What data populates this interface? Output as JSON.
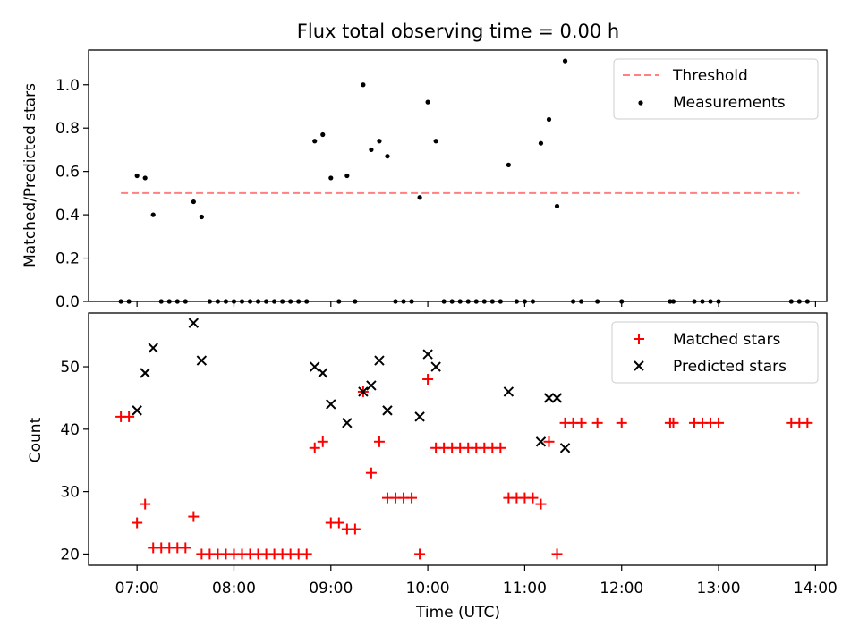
{
  "chart_data": [
    {
      "type": "scatter",
      "title": "Flux total observing time = 0.00 h",
      "xlabel": "",
      "ylabel": "Matched/Predicted stars",
      "xlim": [
        "06:30",
        "14:07"
      ],
      "ylim": [
        0,
        1.16
      ],
      "yticks": [
        "0.0",
        "0.2",
        "0.4",
        "0.6",
        "0.8",
        "1.0"
      ],
      "legend": {
        "position": "top-right",
        "entries": [
          "Threshold",
          "Measurements"
        ]
      },
      "series": [
        {
          "name": "Threshold",
          "kind": "dashed-line",
          "color": "#ff8080",
          "x": [
            "06:50",
            "13:50"
          ],
          "y": [
            0.5,
            0.5
          ]
        },
        {
          "name": "Measurements",
          "kind": "points",
          "color": "#000000",
          "x": [
            "06:50",
            "06:55",
            "07:00",
            "07:05",
            "07:10",
            "07:15",
            "07:20",
            "07:25",
            "07:30",
            "07:35",
            "07:40",
            "07:45",
            "07:50",
            "07:55",
            "08:00",
            "08:05",
            "08:10",
            "08:15",
            "08:20",
            "08:25",
            "08:30",
            "08:35",
            "08:40",
            "08:45",
            "08:50",
            "08:55",
            "09:00",
            "09:05",
            "09:10",
            "09:15",
            "09:20",
            "09:25",
            "09:30",
            "09:35",
            "09:40",
            "09:45",
            "09:50",
            "09:55",
            "10:00",
            "10:05",
            "10:10",
            "10:15",
            "10:20",
            "10:25",
            "10:30",
            "10:35",
            "10:40",
            "10:45",
            "10:50",
            "10:55",
            "11:00",
            "11:05",
            "11:10",
            "11:15",
            "11:20",
            "11:25",
            "11:30",
            "11:35",
            "11:45",
            "12:00",
            "12:30",
            "12:32",
            "12:45",
            "12:50",
            "12:55",
            "13:00",
            "13:45",
            "13:50",
            "13:55"
          ],
          "y": [
            0,
            0,
            0.58,
            0.57,
            0.4,
            0,
            0,
            0,
            0,
            0.46,
            0.39,
            0,
            0,
            0,
            0,
            0,
            0,
            0,
            0,
            0,
            0,
            0,
            0,
            0,
            0.74,
            0.77,
            0.57,
            0,
            0.58,
            0,
            1.0,
            0.7,
            0.74,
            0.67,
            0,
            0,
            0,
            0.48,
            0.92,
            0.74,
            0,
            0,
            0,
            0,
            0,
            0,
            0,
            0,
            0.63,
            0,
            0,
            0,
            0.73,
            0.84,
            0.44,
            1.11,
            0,
            0,
            0,
            0,
            0,
            0,
            0,
            0,
            0,
            0,
            0,
            0,
            0
          ]
        }
      ]
    },
    {
      "type": "scatter",
      "title": "",
      "xlabel": "Time (UTC)",
      "ylabel": "Count",
      "xlim": [
        "06:30",
        "14:07"
      ],
      "ylim": [
        18.2,
        58.6
      ],
      "xticks": [
        "07:00",
        "08:00",
        "09:00",
        "10:00",
        "11:00",
        "12:00",
        "13:00",
        "14:00"
      ],
      "yticks": [
        "20",
        "30",
        "40",
        "50"
      ],
      "legend": {
        "position": "top-right",
        "entries": [
          "Matched stars",
          "Predicted stars"
        ]
      },
      "series": [
        {
          "name": "Matched stars",
          "marker": "plus",
          "color": "#ff0000",
          "x": [
            "06:50",
            "06:55",
            "07:00",
            "07:05",
            "07:10",
            "07:15",
            "07:20",
            "07:25",
            "07:30",
            "07:35",
            "07:40",
            "07:45",
            "07:50",
            "07:55",
            "08:00",
            "08:05",
            "08:10",
            "08:15",
            "08:20",
            "08:25",
            "08:30",
            "08:35",
            "08:40",
            "08:45",
            "08:50",
            "08:55",
            "09:00",
            "09:05",
            "09:10",
            "09:15",
            "09:20",
            "09:25",
            "09:30",
            "09:35",
            "09:40",
            "09:45",
            "09:50",
            "09:55",
            "10:00",
            "10:05",
            "10:10",
            "10:15",
            "10:20",
            "10:25",
            "10:30",
            "10:35",
            "10:40",
            "10:45",
            "10:50",
            "10:55",
            "11:00",
            "11:05",
            "11:10",
            "11:15",
            "11:20",
            "11:25",
            "11:30",
            "11:35",
            "11:45",
            "12:00",
            "12:30",
            "12:32",
            "12:45",
            "12:50",
            "12:55",
            "13:00",
            "13:45",
            "13:50",
            "13:55"
          ],
          "y": [
            42,
            42,
            25,
            28,
            21,
            21,
            21,
            21,
            21,
            26,
            20,
            20,
            20,
            20,
            20,
            20,
            20,
            20,
            20,
            20,
            20,
            20,
            20,
            20,
            37,
            38,
            25,
            25,
            24,
            24,
            46,
            33,
            38,
            29,
            29,
            29,
            29,
            20,
            48,
            37,
            37,
            37,
            37,
            37,
            37,
            37,
            37,
            37,
            29,
            29,
            29,
            29,
            28,
            38,
            20,
            41,
            41,
            41,
            41,
            41,
            41,
            41,
            41,
            41,
            41,
            41,
            41,
            41,
            41
          ]
        },
        {
          "name": "Predicted stars",
          "marker": "x",
          "color": "#000000",
          "x": [
            "07:00",
            "07:05",
            "07:10",
            "07:35",
            "07:40",
            "08:50",
            "08:55",
            "09:00",
            "09:10",
            "09:20",
            "09:25",
            "09:30",
            "09:35",
            "09:55",
            "10:00",
            "10:05",
            "10:50",
            "11:10",
            "11:15",
            "11:20",
            "11:25"
          ],
          "y": [
            43,
            49,
            53,
            57,
            51,
            50,
            49,
            44,
            41,
            46,
            47,
            51,
            43,
            42,
            52,
            50,
            46,
            38,
            45,
            45,
            37
          ]
        }
      ]
    }
  ]
}
